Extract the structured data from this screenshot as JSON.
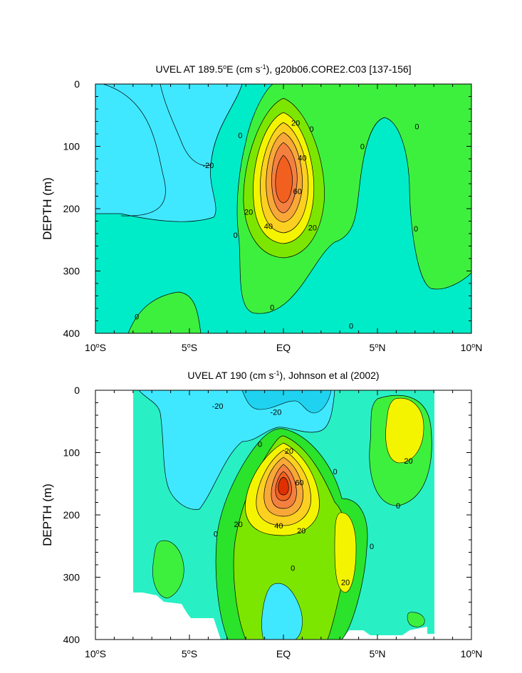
{
  "colors": {
    "level_n40": "#0080ff",
    "level_n20": "#1fd2f0",
    "level_n20b": "#40e8ff",
    "level_0": "#00ecc8",
    "level_0b": "#29f0c4",
    "level_20": "#2be32b",
    "level_20b": "#3ef03e",
    "level_30": "#7de600",
    "level_40": "#f4f400",
    "level_50": "#fcd020",
    "level_60": "#f8a838",
    "level_70": "#f48040",
    "level_80": "#f26020",
    "level_max": "#e03000"
  },
  "chart_data": [
    {
      "type": "contour",
      "title": {
        "prefix": "UVEL AT 189.5",
        "deg": "o",
        "mid": "E (cm s",
        "sup": "-1",
        "suffix": "), g20b06.CORE2.C03 [137-156]"
      },
      "ylabel": "DEPTH (m)",
      "ylim": [
        0,
        400
      ],
      "yaxis_reversed": true,
      "yticks": [
        0,
        100,
        200,
        300,
        400
      ],
      "xlim": [
        -10,
        10
      ],
      "xticks": [
        {
          "v": -10,
          "num": "10",
          "deg": "o",
          "hem": "S"
        },
        {
          "v": -5,
          "num": "5",
          "deg": "o",
          "hem": "S"
        },
        {
          "v": 0,
          "num": "EQ",
          "deg": "",
          "hem": ""
        },
        {
          "v": 5,
          "num": "5",
          "deg": "o",
          "hem": "N"
        },
        {
          "v": 10,
          "num": "10",
          "deg": "o",
          "hem": "N"
        }
      ],
      "units": "cm/s",
      "contour_interval": 10,
      "core": {
        "lat": 0,
        "depth": 150,
        "max_value": 80
      },
      "labels": [
        {
          "text": "0",
          "lat": -2.3,
          "depth": 82
        },
        {
          "text": "-20",
          "lat": -4.0,
          "depth": 130
        },
        {
          "text": "20",
          "lat": 0.65,
          "depth": 62
        },
        {
          "text": "0",
          "lat": 1.5,
          "depth": 72
        },
        {
          "text": "0",
          "lat": 4.2,
          "depth": 100
        },
        {
          "text": "0",
          "lat": 7.1,
          "depth": 68
        },
        {
          "text": "40",
          "lat": 1.0,
          "depth": 118
        },
        {
          "text": "60",
          "lat": 0.75,
          "depth": 172
        },
        {
          "text": "20",
          "lat": -1.85,
          "depth": 205
        },
        {
          "text": "40",
          "lat": -0.8,
          "depth": 228
        },
        {
          "text": "20",
          "lat": 1.55,
          "depth": 230
        },
        {
          "text": "0",
          "lat": -2.55,
          "depth": 242
        },
        {
          "text": "0",
          "lat": 7.05,
          "depth": 232
        },
        {
          "text": "0",
          "lat": -7.8,
          "depth": 373
        },
        {
          "text": "0",
          "lat": -0.6,
          "depth": 358
        },
        {
          "text": "0",
          "lat": 3.6,
          "depth": 388
        }
      ]
    },
    {
      "type": "contour",
      "title": {
        "prefix": "UVEL AT 190 (cm s",
        "deg": "",
        "mid": "",
        "sup": "-1",
        "suffix": "), Johnson et al (2002)"
      },
      "ylabel": "DEPTH (m)",
      "ylim": [
        0,
        400
      ],
      "yaxis_reversed": true,
      "yticks": [
        0,
        100,
        200,
        300,
        400
      ],
      "xlim": [
        -10,
        10
      ],
      "xticks": [
        {
          "v": -10,
          "num": "10",
          "deg": "o",
          "hem": "S"
        },
        {
          "v": -5,
          "num": "5",
          "deg": "o",
          "hem": "S"
        },
        {
          "v": 0,
          "num": "EQ",
          "deg": "",
          "hem": ""
        },
        {
          "v": 5,
          "num": "5",
          "deg": "o",
          "hem": "N"
        },
        {
          "v": 10,
          "num": "10",
          "deg": "o",
          "hem": "N"
        }
      ],
      "units": "cm/s",
      "contour_interval": 10,
      "data_extent_lat": [
        -8,
        8
      ],
      "core": {
        "lat": 0,
        "depth": 148,
        "max_value": 80
      },
      "labels": [
        {
          "text": "-20",
          "lat": -3.5,
          "depth": 25
        },
        {
          "text": "-20",
          "lat": -0.4,
          "depth": 35
        },
        {
          "text": "20",
          "lat": 0.3,
          "depth": 97
        },
        {
          "text": "0",
          "lat": -1.25,
          "depth": 86
        },
        {
          "text": "0",
          "lat": 2.75,
          "depth": 130
        },
        {
          "text": "20",
          "lat": 6.65,
          "depth": 113
        },
        {
          "text": "60",
          "lat": 0.85,
          "depth": 148
        },
        {
          "text": "0",
          "lat": 6.1,
          "depth": 185
        },
        {
          "text": "20",
          "lat": -2.4,
          "depth": 215
        },
        {
          "text": "40",
          "lat": -0.25,
          "depth": 217
        },
        {
          "text": "20",
          "lat": 0.95,
          "depth": 225
        },
        {
          "text": "0",
          "lat": -3.6,
          "depth": 230
        },
        {
          "text": "0",
          "lat": 4.7,
          "depth": 250
        },
        {
          "text": "0",
          "lat": 0.5,
          "depth": 285
        },
        {
          "text": "20",
          "lat": 3.3,
          "depth": 308
        }
      ]
    }
  ]
}
